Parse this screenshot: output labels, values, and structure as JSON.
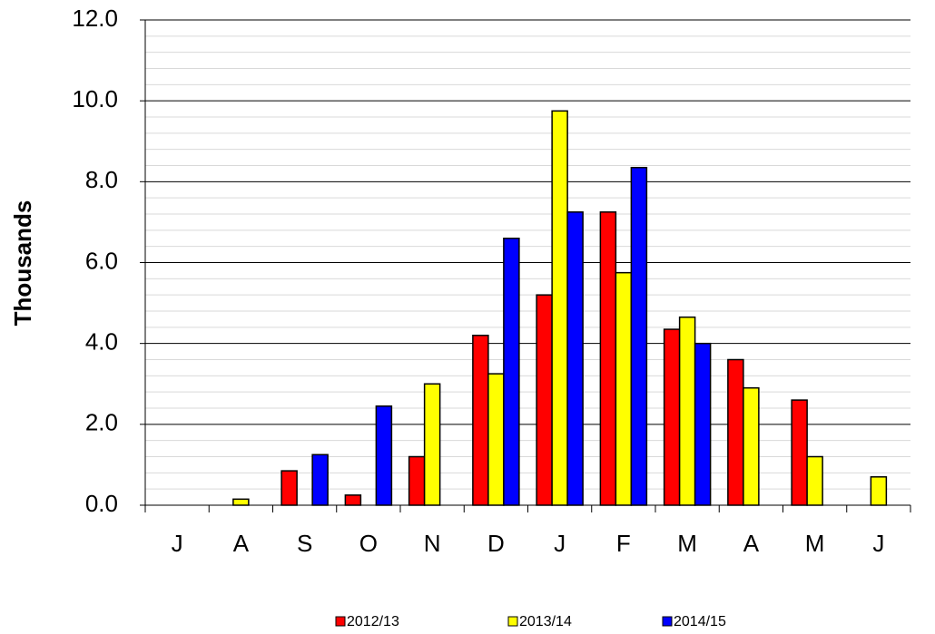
{
  "chart_data": {
    "type": "bar",
    "y_label": "Thousands",
    "categories": [
      "J",
      "A",
      "S",
      "O",
      "N",
      "D",
      "J",
      "F",
      "M",
      "A",
      "M",
      "J"
    ],
    "series": [
      {
        "name": "2012/13",
        "color": "#ff0000",
        "values": [
          null,
          null,
          0.85,
          0.25,
          1.2,
          4.2,
          5.2,
          7.25,
          4.35,
          3.6,
          2.6,
          null
        ]
      },
      {
        "name": "2013/14",
        "color": "#ffff00",
        "values": [
          null,
          0.15,
          null,
          null,
          3.0,
          3.25,
          9.75,
          5.75,
          4.65,
          2.9,
          1.2,
          0.7
        ]
      },
      {
        "name": "2014/15",
        "color": "#0000ff",
        "values": [
          null,
          null,
          1.25,
          2.45,
          null,
          6.6,
          7.25,
          8.35,
          4.0,
          null,
          null,
          null
        ]
      }
    ],
    "ylim": [
      0,
      12
    ],
    "yticks": [
      {
        "value": 0,
        "label": "0.0"
      },
      {
        "value": 2,
        "label": "2.0"
      },
      {
        "value": 4,
        "label": "4.0"
      },
      {
        "value": 6,
        "label": "6.0"
      },
      {
        "value": 8,
        "label": "8.0"
      },
      {
        "value": 10,
        "label": "10.0"
      },
      {
        "value": 12,
        "label": "12.0"
      }
    ],
    "minor_yticks": [
      0.4,
      0.8,
      1.2,
      1.6,
      2.4,
      2.8,
      3.2,
      3.6,
      4.4,
      4.8,
      5.2,
      5.6,
      6.4,
      6.8,
      7.2,
      7.6,
      8.4,
      8.8,
      9.2,
      9.6,
      10.4,
      10.8,
      11.2,
      11.6
    ],
    "grid": true,
    "legend": "bottom"
  }
}
